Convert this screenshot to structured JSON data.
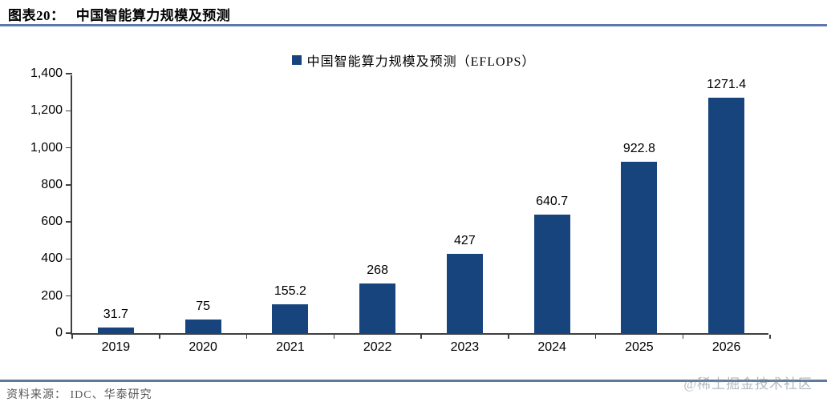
{
  "header": {
    "figure_label": "图表20：",
    "title": "中国智能算力规模及预测"
  },
  "legend": {
    "label": "中国智能算力规模及预测（EFLOPS）"
  },
  "chart_data": {
    "type": "bar",
    "title": "中国智能算力规模及预测",
    "series_name": "中国智能算力规模及预测（EFLOPS）",
    "categories": [
      "2019",
      "2020",
      "2021",
      "2022",
      "2023",
      "2024",
      "2025",
      "2026"
    ],
    "values": [
      31.7,
      75,
      155.2,
      268,
      427,
      640.7,
      922.8,
      1271.4
    ],
    "value_labels": [
      "31.7",
      "75",
      "155.2",
      "268",
      "427",
      "640.7",
      "922.8",
      "1271.4"
    ],
    "xlabel": "",
    "ylabel": "",
    "ylim": [
      0,
      1400
    ],
    "ytick_step": 200,
    "ytick_labels": [
      "0",
      "200",
      "400",
      "600",
      "800",
      "1,000",
      "1,200",
      "1,400"
    ],
    "grid": false,
    "legend_position": "top-center",
    "bar_color": "#18447e"
  },
  "footer": {
    "source": "资料来源： IDC、华泰研究",
    "watermark": "@稀土掘金技术社区"
  },
  "colors": {
    "bar": "#18447e",
    "title_rule": "#5b79ad",
    "footer_rule": "#5d7b98",
    "axis": "#3f3f3f",
    "source_text": "#595959"
  }
}
